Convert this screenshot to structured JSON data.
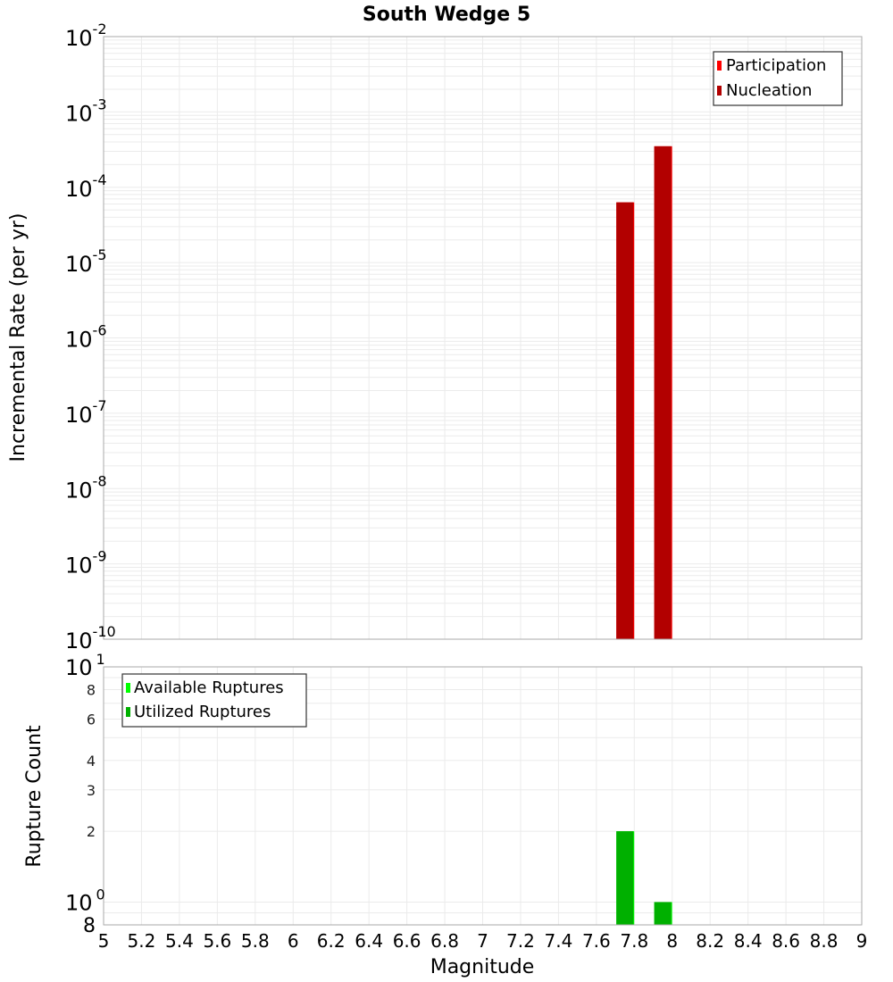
{
  "chart_data": [
    {
      "type": "bar",
      "title": "South Wedge 5",
      "xlabel": "Magnitude",
      "ylabel": "Incremental Rate (per yr)",
      "yscale": "log",
      "ylim": [
        1e-10,
        0.01
      ],
      "xlim": [
        5,
        9
      ],
      "grid": true,
      "legend_position": "top-right",
      "x_ticks": [
        "5",
        "5.2",
        "5.4",
        "5.6",
        "5.8",
        "6",
        "6.2",
        "6.4",
        "6.6",
        "6.8",
        "7",
        "7.2",
        "7.4",
        "7.6",
        "7.8",
        "8",
        "8.2",
        "8.4",
        "8.6",
        "8.8",
        "9"
      ],
      "y_ticks": [
        {
          "base": "10",
          "exp": "-2"
        },
        {
          "base": "10",
          "exp": "-3"
        },
        {
          "base": "10",
          "exp": "-4"
        },
        {
          "base": "10",
          "exp": "-5"
        },
        {
          "base": "10",
          "exp": "-6"
        },
        {
          "base": "10",
          "exp": "-7"
        },
        {
          "base": "10",
          "exp": "-8"
        },
        {
          "base": "10",
          "exp": "-9"
        },
        {
          "base": "10",
          "exp": "-10"
        }
      ],
      "x": [
        7.75,
        7.95
      ],
      "series": [
        {
          "name": "Participation",
          "color": "#ff0000",
          "values": [
            6.3e-05,
            0.00035
          ]
        },
        {
          "name": "Nucleation",
          "color": "#b20000",
          "values": [
            6.3e-05,
            0.00035
          ]
        }
      ]
    },
    {
      "type": "bar",
      "title": "",
      "xlabel": "Magnitude",
      "ylabel": "Rupture Count",
      "yscale": "log",
      "ylim": [
        0.8,
        10
      ],
      "xlim": [
        5,
        9
      ],
      "grid": true,
      "legend_position": "top-left",
      "y_ticks": [
        {
          "label": "10",
          "exp": "1",
          "value": 10
        },
        {
          "label": "8",
          "value": 8
        },
        {
          "label": "6",
          "value": 6
        },
        {
          "label": "4",
          "value": 4
        },
        {
          "label": "3",
          "value": 3
        },
        {
          "label": "2",
          "value": 2
        },
        {
          "label": "10",
          "exp": "0",
          "value": 1
        },
        {
          "label": "8",
          "value": 0.8
        }
      ],
      "x": [
        7.75,
        7.95
      ],
      "series": [
        {
          "name": "Available Ruptures",
          "color": "#00ff00",
          "values": [
            2,
            1
          ]
        },
        {
          "name": "Utilized Ruptures",
          "color": "#00b000",
          "values": [
            2,
            1
          ]
        }
      ]
    }
  ],
  "labels": {
    "title": "South Wedge 5",
    "xlabel": "Magnitude",
    "top_ylabel": "Incremental Rate (per yr)",
    "bottom_ylabel": "Rupture Count",
    "top_legend": [
      "Participation",
      "Nucleation"
    ],
    "bottom_legend": [
      "Available Ruptures",
      "Utilized Ruptures"
    ]
  }
}
